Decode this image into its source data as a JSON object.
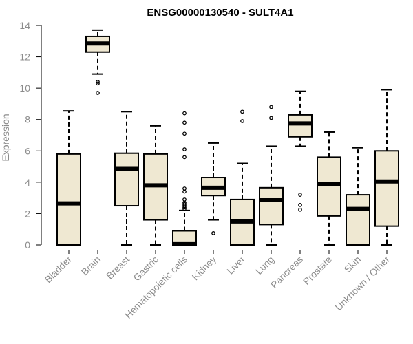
{
  "chart_data": {
    "type": "boxplot",
    "title": "ENSG00000130540 - SULT4A1",
    "xlabel": "",
    "ylabel": "Expression",
    "ylim": [
      0,
      14
    ],
    "yticks": [
      0,
      2,
      4,
      6,
      8,
      10,
      12,
      14
    ],
    "grid": false,
    "box_color": "#efe8d2",
    "line_color": "#000000",
    "categories": [
      "Bladder",
      "Brain",
      "Breast",
      "Gastric",
      "Hematopoietic cells",
      "Kidney",
      "Liver",
      "Lung",
      "Pancreas",
      "Prostate",
      "Skin",
      "Unknown / Other"
    ],
    "boxes": [
      {
        "category": "Bladder",
        "whisker_low": 0.0,
        "q1": 0.0,
        "median": 2.65,
        "q3": 5.8,
        "whisker_high": 8.55,
        "outliers": []
      },
      {
        "category": "Brain",
        "whisker_low": 10.9,
        "q1": 12.3,
        "median": 12.85,
        "q3": 13.3,
        "whisker_high": 13.7,
        "outliers": [
          10.4,
          10.3,
          9.7
        ]
      },
      {
        "category": "Breast",
        "whisker_low": 0.0,
        "q1": 2.5,
        "median": 4.85,
        "q3": 5.85,
        "whisker_high": 8.5,
        "outliers": []
      },
      {
        "category": "Gastric",
        "whisker_low": 0.0,
        "q1": 1.6,
        "median": 3.8,
        "q3": 5.8,
        "whisker_high": 7.6,
        "outliers": []
      },
      {
        "category": "Hematopoietic cells",
        "whisker_low": 0.0,
        "q1": 0.0,
        "median": 0.05,
        "q3": 0.9,
        "whisker_high": 2.2,
        "outliers": [
          8.4,
          7.8,
          7.1,
          6.1,
          5.6,
          3.6,
          3.4,
          2.9,
          2.7,
          2.6,
          2.5,
          2.4,
          2.3
        ]
      },
      {
        "category": "Kidney",
        "whisker_low": 1.6,
        "q1": 3.15,
        "median": 3.65,
        "q3": 4.3,
        "whisker_high": 6.5,
        "outliers": [
          0.75
        ]
      },
      {
        "category": "Liver",
        "whisker_low": 0.0,
        "q1": 0.0,
        "median": 1.5,
        "q3": 2.9,
        "whisker_high": 5.2,
        "outliers": [
          8.5,
          7.9
        ]
      },
      {
        "category": "Lung",
        "whisker_low": 0.0,
        "q1": 1.3,
        "median": 2.85,
        "q3": 3.65,
        "whisker_high": 6.3,
        "outliers": [
          8.8,
          8.1
        ]
      },
      {
        "category": "Pancreas",
        "whisker_low": 6.3,
        "q1": 6.9,
        "median": 7.75,
        "q3": 8.3,
        "whisker_high": 9.8,
        "outliers": [
          3.2,
          2.55,
          2.25
        ]
      },
      {
        "category": "Prostate",
        "whisker_low": 0.0,
        "q1": 1.85,
        "median": 3.9,
        "q3": 5.6,
        "whisker_high": 7.2,
        "outliers": []
      },
      {
        "category": "Skin",
        "whisker_low": 0.0,
        "q1": 0.0,
        "median": 2.3,
        "q3": 3.2,
        "whisker_high": 6.2,
        "outliers": []
      },
      {
        "category": "Unknown / Other",
        "whisker_low": 0.0,
        "q1": 1.2,
        "median": 4.05,
        "q3": 6.0,
        "whisker_high": 9.9,
        "outliers": []
      }
    ]
  }
}
